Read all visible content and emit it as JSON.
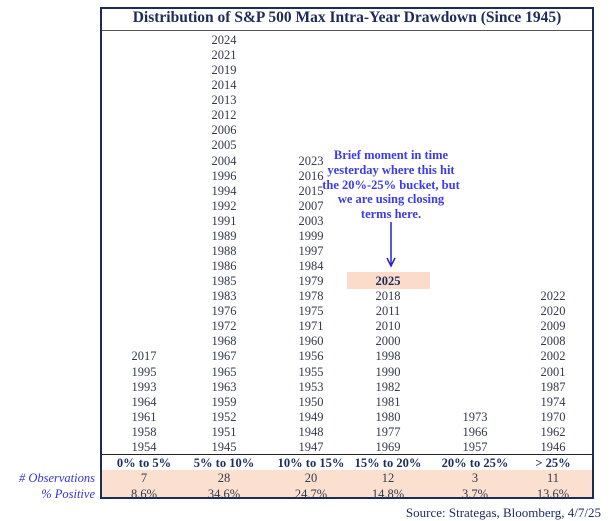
{
  "chart_data": {
    "type": "table",
    "title": "Distribution of S&P 500 Max Intra-Year Drawdown (Since 1945)",
    "categories": [
      "0% to 5%",
      "5% to 10%",
      "10% to 15%",
      "15%  to 20%",
      "20% to 25%",
      "> 25%"
    ],
    "columns": [
      [
        "2017",
        "1995",
        "1993",
        "1964",
        "1961",
        "1958",
        "1954"
      ],
      [
        "2024",
        "2021",
        "2019",
        "2014",
        "2013",
        "2012",
        "2006",
        "2005",
        "2004",
        "1996",
        "1994",
        "1992",
        "1991",
        "1989",
        "1988",
        "1986",
        "1985",
        "1983",
        "1976",
        "1972",
        "1968",
        "1967",
        "1965",
        "1963",
        "1959",
        "1952",
        "1951",
        "1945"
      ],
      [
        "2023",
        "2016",
        "2015",
        "2007",
        "2003",
        "1999",
        "1997",
        "1984",
        "1979",
        "1978",
        "1975",
        "1971",
        "1960",
        "1956",
        "1955",
        "1953",
        "1950",
        "1949",
        "1948",
        "1947"
      ],
      [
        "2025",
        "2018",
        "2011",
        "2010",
        "2000",
        "1998",
        "1990",
        "1982",
        "1981",
        "1980",
        "1977",
        "1969"
      ],
      [
        "1973",
        "1966",
        "1957"
      ],
      [
        "2022",
        "2020",
        "2009",
        "2008",
        "2002",
        "2001",
        "1987",
        "1974",
        "1970",
        "1962",
        "1946"
      ]
    ],
    "highlighted_year": "2025",
    "observations_label": "# Observations",
    "observations": [
      "7",
      "28",
      "20",
      "12",
      "3",
      "11"
    ],
    "positive_label": "% Positive",
    "positive": [
      "8.6%",
      "34.6%",
      "24.7%",
      "14.8%",
      "3.7%",
      "13.6%"
    ],
    "annotation": "Brief moment in time yesterday where this hit the 20%-25% bucket, but we are using closing terms here.",
    "source": "Source: Strategas, Bloomberg, 4/7/25"
  },
  "colors": {
    "navy": "#1c2b5a",
    "highlight": "#fbe0d0",
    "annotation": "#3b3bf0"
  }
}
